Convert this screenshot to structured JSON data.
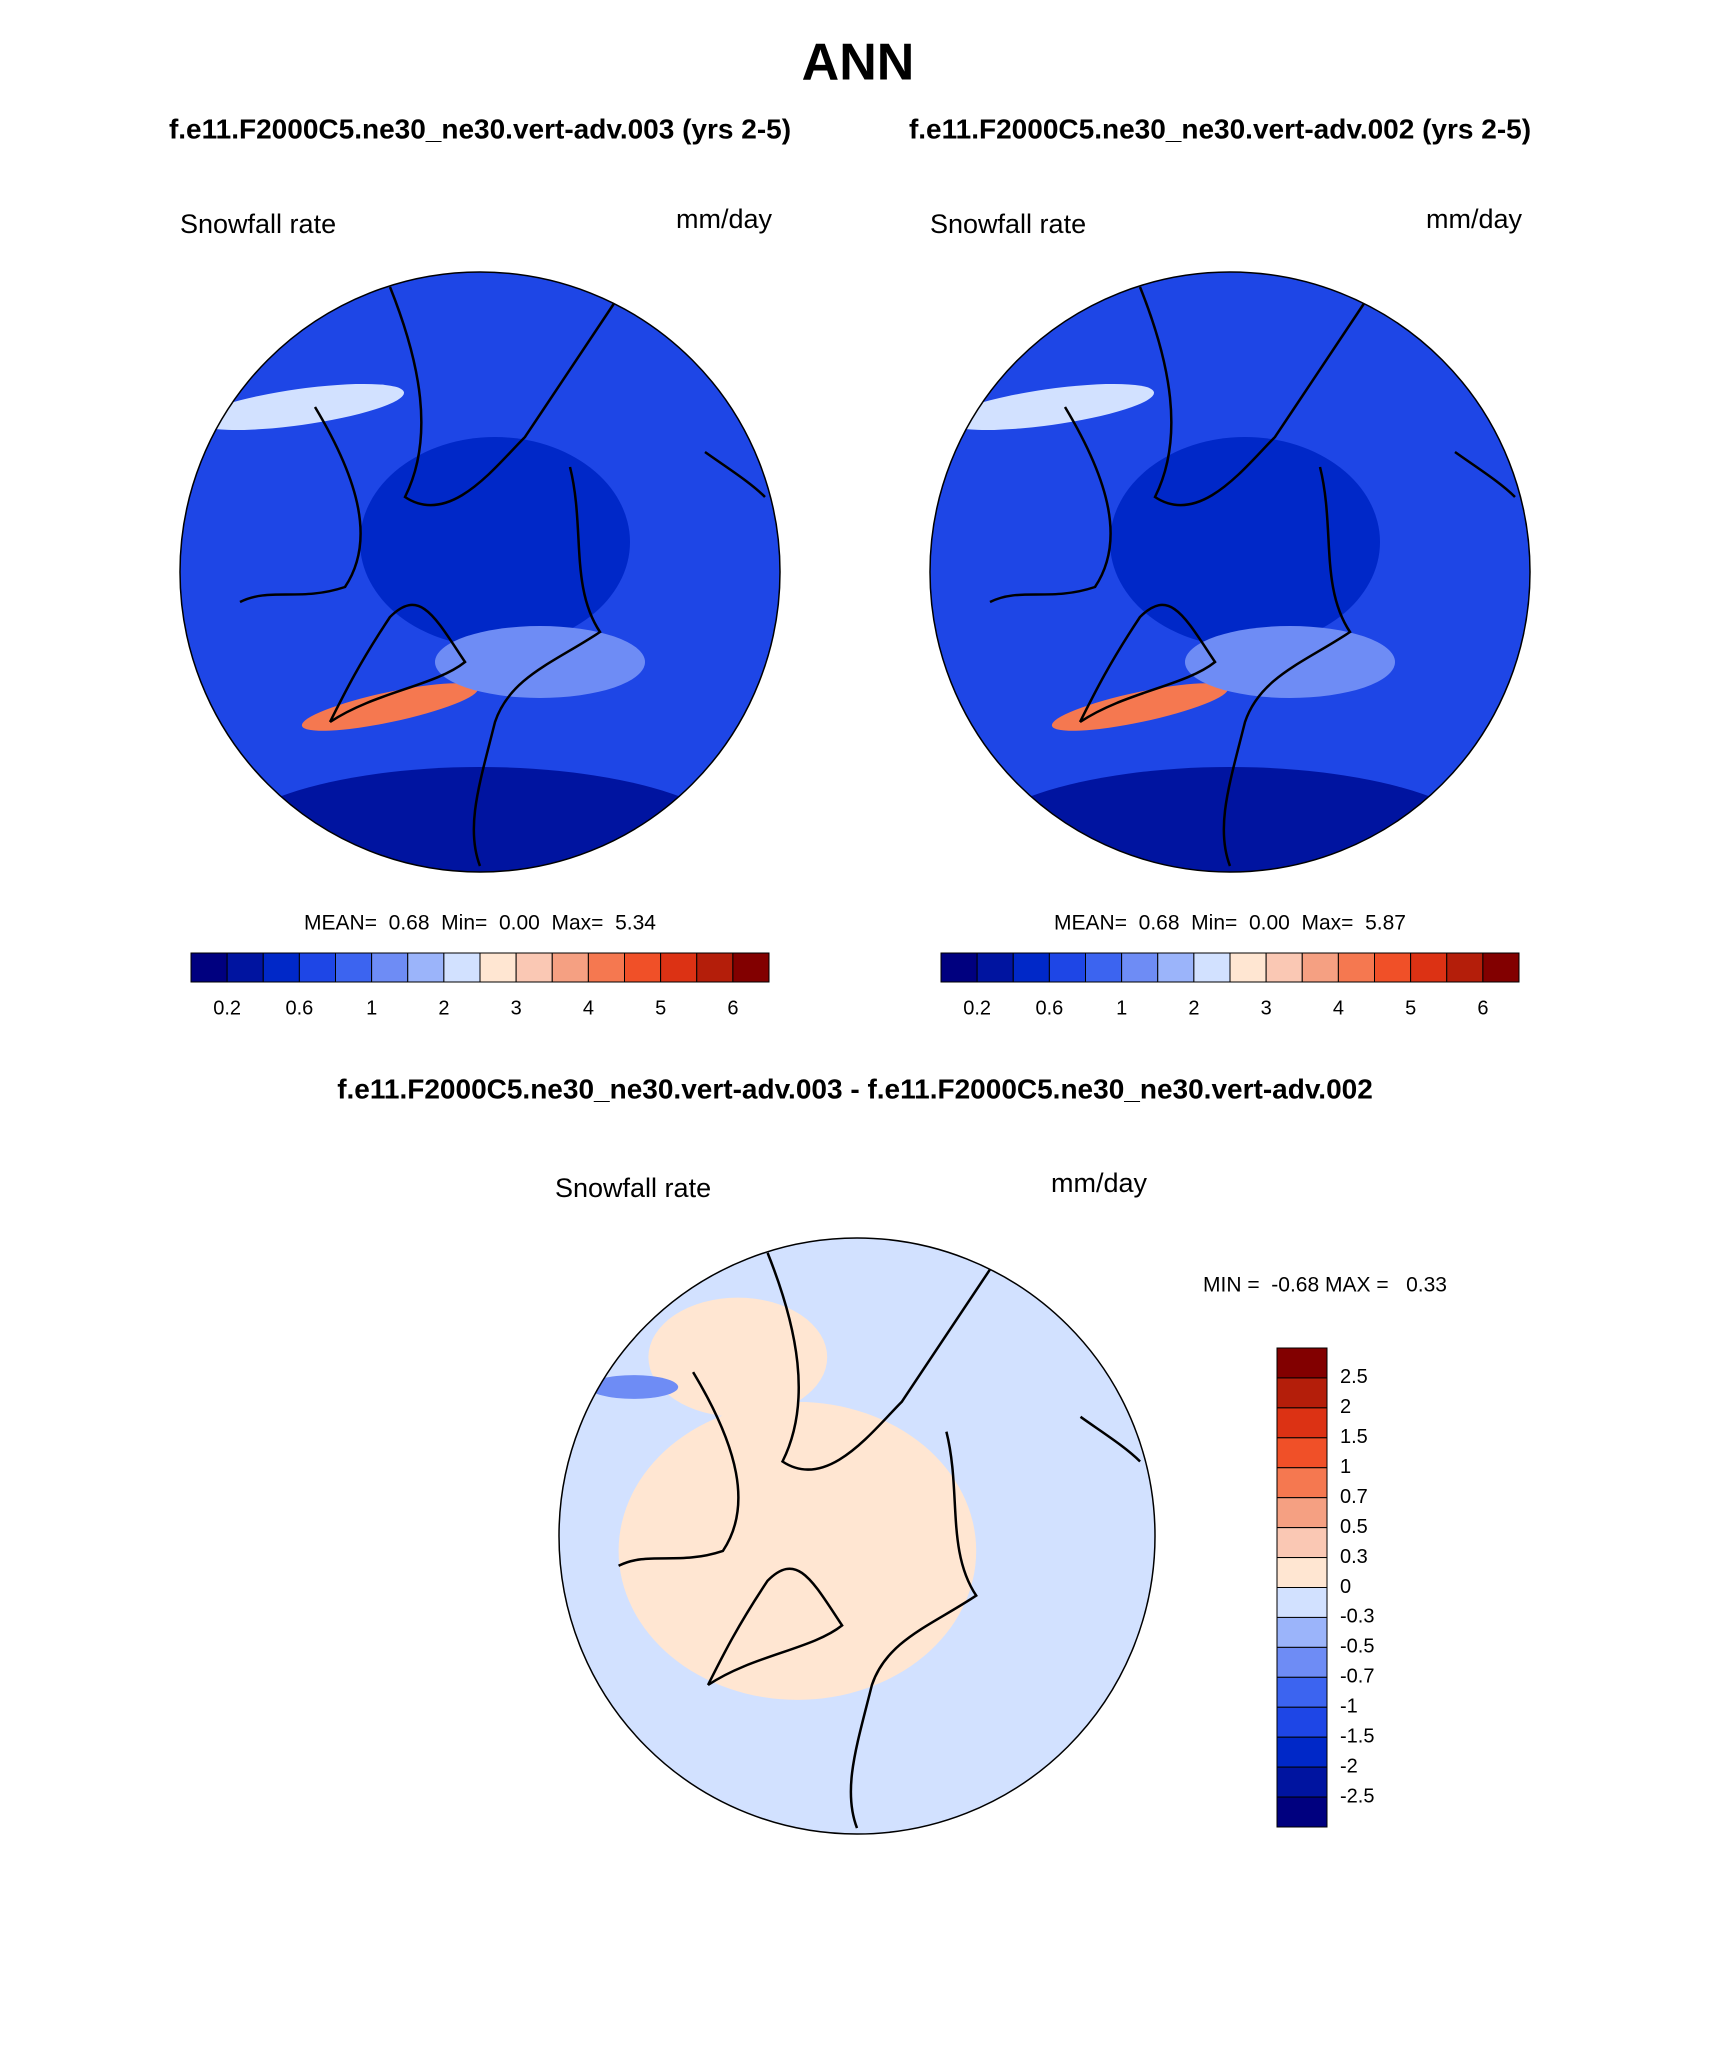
{
  "title": "ANN",
  "panels": [
    {
      "case": "f.e11.F2000C5.ne30_ne30.vert-adv.003 (yrs 2-5)",
      "field": "Snowfall rate",
      "units": "mm/day",
      "stats": "MEAN=  0.68  Min=  0.00  Max=  5.34",
      "colorbar": {
        "labels": [
          "0.2",
          "0.6",
          "1",
          "2",
          "3",
          "4",
          "5",
          "6"
        ]
      }
    },
    {
      "case": "f.e11.F2000C5.ne30_ne30.vert-adv.002 (yrs 2-5)",
      "field": "Snowfall rate",
      "units": "mm/day",
      "stats": "MEAN=  0.68  Min=  0.00  Max=  5.87",
      "colorbar": {
        "labels": [
          "0.2",
          "0.6",
          "1",
          "2",
          "3",
          "4",
          "5",
          "6"
        ]
      }
    }
  ],
  "difference": {
    "title": "f.e11.F2000C5.ne30_ne30.vert-adv.003 - f.e11.F2000C5.ne30_ne30.vert-adv.002",
    "field": "Snowfall rate",
    "units": "mm/day",
    "stats": "MIN =  -0.68 MAX =   0.33",
    "colorbar": {
      "labels": [
        "2.5",
        "2",
        "1.5",
        "1",
        "0.7",
        "0.5",
        "0.3",
        "0",
        "-0.3",
        "-0.5",
        "-0.7",
        "-1",
        "-1.5",
        "-2",
        "-2.5"
      ]
    }
  },
  "colors": [
    "#00007f",
    "#0014a0",
    "#0028c8",
    "#1e46e6",
    "#3c64f0",
    "#6e8cf5",
    "#9bb4fa",
    "#d2e1ff",
    "#ffe6d2",
    "#fac8b4",
    "#f5a082",
    "#f57850",
    "#f05028",
    "#dc3214",
    "#b41e0a",
    "#820000"
  ]
}
